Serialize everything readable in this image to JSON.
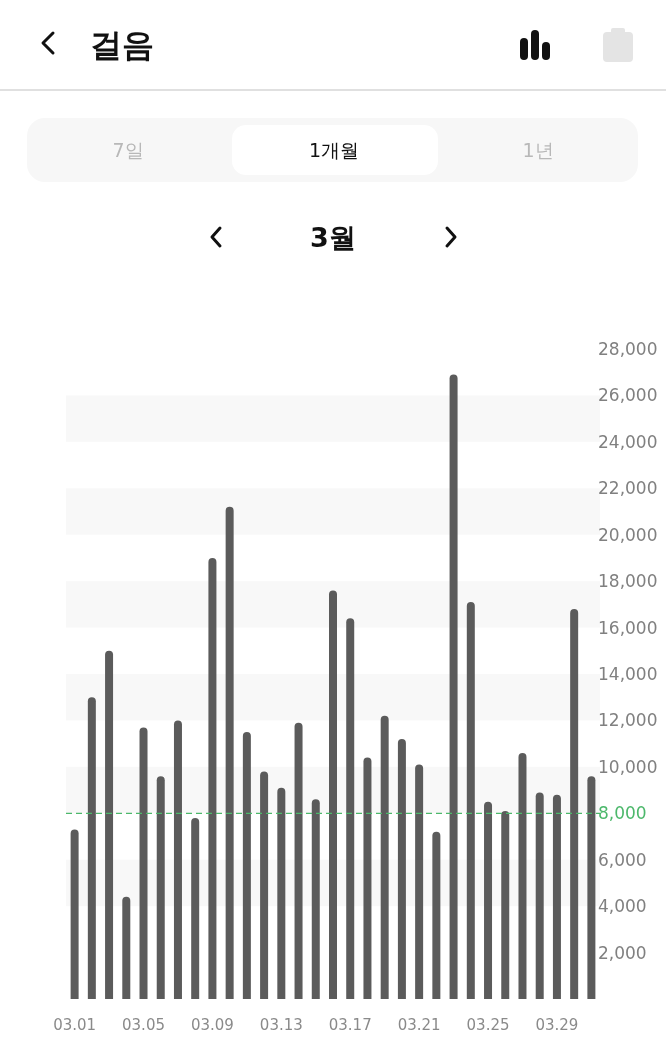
{
  "chart_data": {
    "type": "bar",
    "title": "걸음",
    "subtitle": "3월",
    "annotations": [
      "7일",
      "1개월",
      "1년"
    ],
    "categories": [
      "03.01",
      null,
      null,
      null,
      "03.05",
      null,
      null,
      null,
      "03.09",
      null,
      null,
      null,
      "03.13",
      null,
      null,
      null,
      "03.17",
      null,
      null,
      null,
      "03.21",
      null,
      null,
      null,
      "03.25",
      null,
      null,
      null,
      "03.29",
      null,
      null
    ],
    "values": [
      7300,
      13000,
      15000,
      4400,
      11700,
      9600,
      12000,
      7800,
      19000,
      21200,
      11500,
      9800,
      9100,
      11900,
      8600,
      17600,
      16400,
      10400,
      12200,
      11200,
      10100,
      7200,
      26900,
      17100,
      8500,
      8100,
      10600,
      8900,
      8800,
      16800,
      9600
    ],
    "color": "#5b5b5b",
    "ylim": [
      0,
      28000
    ],
    "yticks": [
      {
        "value": 2000,
        "label": "2,000"
      },
      {
        "value": 4000,
        "label": "4,000"
      },
      {
        "value": 6000,
        "label": "6,000"
      },
      {
        "value": 10000,
        "label": "10,000"
      },
      {
        "value": 12000,
        "label": "12,000"
      },
      {
        "value": 14000,
        "label": "14,000"
      },
      {
        "value": 16000,
        "label": "16,000"
      },
      {
        "value": 18000,
        "label": "18,000"
      },
      {
        "value": 20000,
        "label": "20,000"
      },
      {
        "value": 22000,
        "label": "22,000"
      },
      {
        "value": 24000,
        "label": "24,000"
      },
      {
        "value": 26000,
        "label": "26,000"
      },
      {
        "value": 28000,
        "label": "28,000"
      }
    ],
    "bands": [
      {
        "axis": "y",
        "from": 4000,
        "to": 6000,
        "color": "#f8f8f8"
      },
      {
        "axis": "y",
        "from": 8000,
        "to": 10000,
        "color": "#f8f8f8"
      },
      {
        "axis": "y",
        "from": 12000,
        "to": 14000,
        "color": "#f8f8f8"
      },
      {
        "axis": "y",
        "from": 16000,
        "to": 18000,
        "color": "#f8f8f8"
      },
      {
        "axis": "y",
        "from": 20000,
        "to": 22000,
        "color": "#f8f8f8"
      },
      {
        "axis": "y",
        "from": 24000,
        "to": 26000,
        "color": "#f8f8f8"
      }
    ],
    "ref_lines": [
      {
        "axis": "y",
        "value": 8000,
        "label": "8,000",
        "color": "#4cb86b",
        "line_style": "dashed"
      }
    ]
  }
}
